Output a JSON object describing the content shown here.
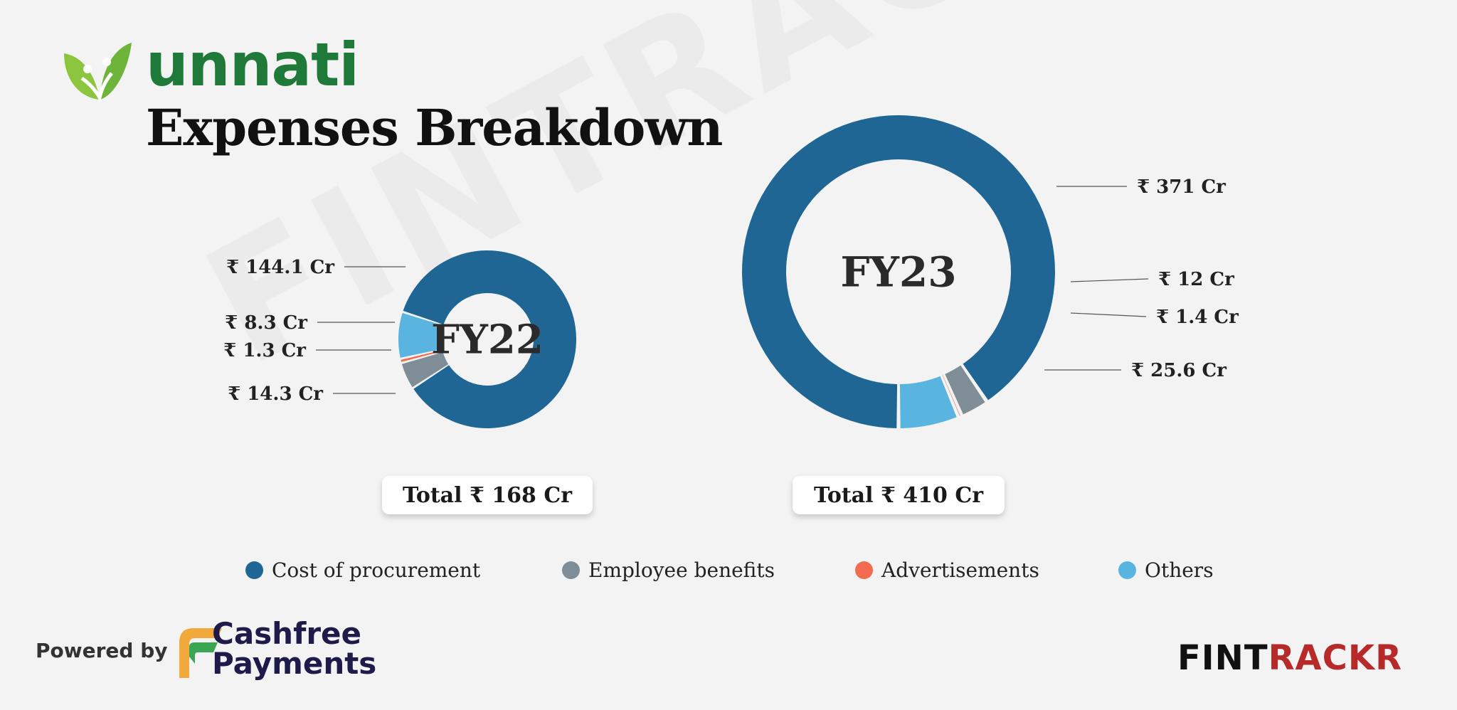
{
  "header": {
    "brand": "unnati",
    "title": "Expenses Breakdown"
  },
  "watermark": "FINTRACKR",
  "colors": {
    "Cost of procurement": "#1f6694",
    "Employee benefits": "#7f8d96",
    "Advertisements": "#f26b4f",
    "Others": "#59b5e0"
  },
  "chart_data": {
    "type": "pie",
    "series_order": [
      "Cost of procurement",
      "Employee benefits",
      "Advertisements",
      "Others"
    ],
    "charts": [
      {
        "center_label": "FY22",
        "total_label": "Total ₹ 168 Cr",
        "values": [
          144.1,
          8.3,
          1.3,
          14.3
        ],
        "labels": [
          "₹ 144.1 Cr",
          "₹ 8.3 Cr",
          "₹ 1.3 Cr",
          "₹ 14.3 Cr"
        ]
      },
      {
        "center_label": "FY23",
        "total_label": "Total ₹ 410 Cr",
        "values": [
          371,
          12,
          1.4,
          25.6
        ],
        "labels": [
          "₹ 371 Cr",
          "₹ 12 Cr",
          "₹ 1.4 Cr",
          "₹ 25.6 Cr"
        ]
      }
    ],
    "legend": [
      "Cost of procurement",
      "Employee benefits",
      "Advertisements",
      "Others"
    ],
    "legend_position": "bottom"
  },
  "footer": {
    "powered_by": "Powered by",
    "partner_line1": "Cashfree",
    "partner_line2": "Payments",
    "source_a": "FINT",
    "source_b": "RACKR"
  }
}
